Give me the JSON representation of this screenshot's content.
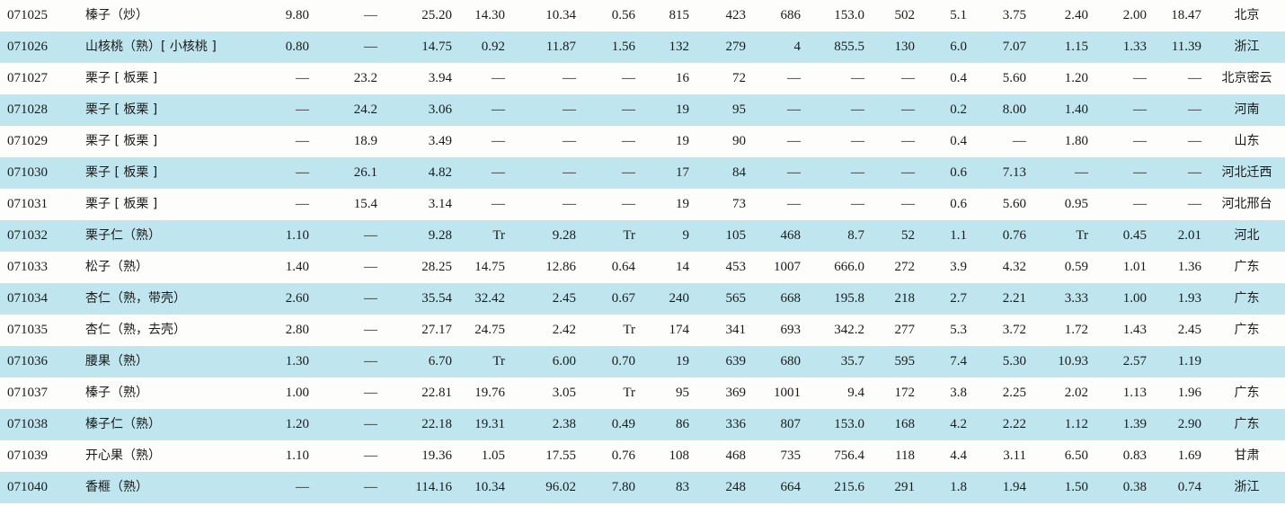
{
  "table": {
    "rows": [
      {
        "code": "071025",
        "name": "榛子（炒）",
        "v1": "9.80",
        "v2": "—",
        "v3": "25.20",
        "v4": "14.30",
        "v5": "10.34",
        "v6": "0.56",
        "v7": "815",
        "v8": "423",
        "v9": "686",
        "v10": "153.0",
        "v11": "502",
        "v12": "5.1",
        "v13": "3.75",
        "v14": "2.40",
        "v15": "2.00",
        "v16": "18.47",
        "origin": "北京"
      },
      {
        "code": "071026",
        "name": "山核桃（熟）[ 小核桃 ]",
        "v1": "0.80",
        "v2": "—",
        "v3": "14.75",
        "v4": "0.92",
        "v5": "11.87",
        "v6": "1.56",
        "v7": "132",
        "v8": "279",
        "v9": "4",
        "v10": "855.5",
        "v11": "130",
        "v12": "6.0",
        "v13": "7.07",
        "v14": "1.15",
        "v15": "1.33",
        "v16": "11.39",
        "origin": "浙江"
      },
      {
        "code": "071027",
        "name": "栗子 [ 板栗 ]",
        "v1": "—",
        "v2": "23.2",
        "v3": "3.94",
        "v4": "—",
        "v5": "—",
        "v6": "—",
        "v7": "16",
        "v8": "72",
        "v9": "—",
        "v10": "—",
        "v11": "—",
        "v12": "0.4",
        "v13": "5.60",
        "v14": "1.20",
        "v15": "—",
        "v16": "—",
        "origin": "北京密云"
      },
      {
        "code": "071028",
        "name": "栗子 [ 板栗 ]",
        "v1": "—",
        "v2": "24.2",
        "v3": "3.06",
        "v4": "—",
        "v5": "—",
        "v6": "—",
        "v7": "19",
        "v8": "95",
        "v9": "—",
        "v10": "—",
        "v11": "—",
        "v12": "0.2",
        "v13": "8.00",
        "v14": "1.40",
        "v15": "—",
        "v16": "—",
        "origin": "河南"
      },
      {
        "code": "071029",
        "name": "栗子 [ 板栗 ]",
        "v1": "—",
        "v2": "18.9",
        "v3": "3.49",
        "v4": "—",
        "v5": "—",
        "v6": "—",
        "v7": "19",
        "v8": "90",
        "v9": "—",
        "v10": "—",
        "v11": "—",
        "v12": "0.4",
        "v13": "—",
        "v14": "1.80",
        "v15": "—",
        "v16": "—",
        "origin": "山东"
      },
      {
        "code": "071030",
        "name": "栗子 [ 板栗 ]",
        "v1": "—",
        "v2": "26.1",
        "v3": "4.82",
        "v4": "—",
        "v5": "—",
        "v6": "—",
        "v7": "17",
        "v8": "84",
        "v9": "—",
        "v10": "—",
        "v11": "—",
        "v12": "0.6",
        "v13": "7.13",
        "v14": "—",
        "v15": "—",
        "v16": "—",
        "origin": "河北迁西"
      },
      {
        "code": "071031",
        "name": "栗子 [ 板栗 ]",
        "v1": "—",
        "v2": "15.4",
        "v3": "3.14",
        "v4": "—",
        "v5": "—",
        "v6": "—",
        "v7": "19",
        "v8": "73",
        "v9": "—",
        "v10": "—",
        "v11": "—",
        "v12": "0.6",
        "v13": "5.60",
        "v14": "0.95",
        "v15": "—",
        "v16": "—",
        "origin": "河北邢台"
      },
      {
        "code": "071032",
        "name": "栗子仁（熟）",
        "v1": "1.10",
        "v2": "—",
        "v3": "9.28",
        "v4": "Tr",
        "v5": "9.28",
        "v6": "Tr",
        "v7": "9",
        "v8": "105",
        "v9": "468",
        "v10": "8.7",
        "v11": "52",
        "v12": "1.1",
        "v13": "0.76",
        "v14": "Tr",
        "v15": "0.45",
        "v16": "2.01",
        "origin": "河北"
      },
      {
        "code": "071033",
        "name": "松子（熟）",
        "v1": "1.40",
        "v2": "—",
        "v3": "28.25",
        "v4": "14.75",
        "v5": "12.86",
        "v6": "0.64",
        "v7": "14",
        "v8": "453",
        "v9": "1007",
        "v10": "666.0",
        "v11": "272",
        "v12": "3.9",
        "v13": "4.32",
        "v14": "0.59",
        "v15": "1.01",
        "v16": "1.36",
        "origin": "广东"
      },
      {
        "code": "071034",
        "name": "杏仁（熟，带壳）",
        "v1": "2.60",
        "v2": "—",
        "v3": "35.54",
        "v4": "32.42",
        "v5": "2.45",
        "v6": "0.67",
        "v7": "240",
        "v8": "565",
        "v9": "668",
        "v10": "195.8",
        "v11": "218",
        "v12": "2.7",
        "v13": "2.21",
        "v14": "3.33",
        "v15": "1.00",
        "v16": "1.93",
        "origin": "广东"
      },
      {
        "code": "071035",
        "name": "杏仁（熟，去壳）",
        "v1": "2.80",
        "v2": "—",
        "v3": "27.17",
        "v4": "24.75",
        "v5": "2.42",
        "v6": "Tr",
        "v7": "174",
        "v8": "341",
        "v9": "693",
        "v10": "342.2",
        "v11": "277",
        "v12": "5.3",
        "v13": "3.72",
        "v14": "1.72",
        "v15": "1.43",
        "v16": "2.45",
        "origin": "广东"
      },
      {
        "code": "071036",
        "name": "腰果（熟）",
        "v1": "1.30",
        "v2": "—",
        "v3": "6.70",
        "v4": "Tr",
        "v5": "6.00",
        "v6": "0.70",
        "v7": "19",
        "v8": "639",
        "v9": "680",
        "v10": "35.7",
        "v11": "595",
        "v12": "7.4",
        "v13": "5.30",
        "v14": "10.93",
        "v15": "2.57",
        "v16": "1.19",
        "origin": ""
      },
      {
        "code": "071037",
        "name": "榛子（熟）",
        "v1": "1.00",
        "v2": "—",
        "v3": "22.81",
        "v4": "19.76",
        "v5": "3.05",
        "v6": "Tr",
        "v7": "95",
        "v8": "369",
        "v9": "1001",
        "v10": "9.4",
        "v11": "172",
        "v12": "3.8",
        "v13": "2.25",
        "v14": "2.02",
        "v15": "1.13",
        "v16": "1.96",
        "origin": "广东"
      },
      {
        "code": "071038",
        "name": "榛子仁（熟）",
        "v1": "1.20",
        "v2": "—",
        "v3": "22.18",
        "v4": "19.31",
        "v5": "2.38",
        "v6": "0.49",
        "v7": "86",
        "v8": "336",
        "v9": "807",
        "v10": "153.0",
        "v11": "168",
        "v12": "4.2",
        "v13": "2.22",
        "v14": "1.12",
        "v15": "1.39",
        "v16": "2.90",
        "origin": "广东"
      },
      {
        "code": "071039",
        "name": "开心果（熟）",
        "v1": "1.10",
        "v2": "—",
        "v3": "19.36",
        "v4": "1.05",
        "v5": "17.55",
        "v6": "0.76",
        "v7": "108",
        "v8": "468",
        "v9": "735",
        "v10": "756.4",
        "v11": "118",
        "v12": "4.4",
        "v13": "3.11",
        "v14": "6.50",
        "v15": "0.83",
        "v16": "1.69",
        "origin": "甘肃"
      },
      {
        "code": "071040",
        "name": "香榧（熟）",
        "v1": "—",
        "v2": "—",
        "v3": "114.16",
        "v4": "10.34",
        "v5": "96.02",
        "v6": "7.80",
        "v7": "83",
        "v8": "248",
        "v9": "664",
        "v10": "215.6",
        "v11": "291",
        "v12": "1.8",
        "v13": "1.94",
        "v14": "1.50",
        "v15": "0.38",
        "v16": "0.74",
        "origin": "浙江"
      }
    ]
  },
  "colors": {
    "shaded_row": "#bfe6ef",
    "text": "#1a1a1a",
    "page": "#fdfdfc"
  }
}
